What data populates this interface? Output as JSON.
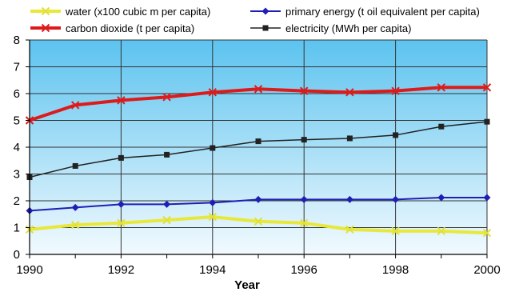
{
  "chart_data": {
    "type": "line",
    "title": "",
    "xlabel": "Year",
    "ylabel": "",
    "x": [
      1990,
      1991,
      1992,
      1993,
      1994,
      1995,
      1996,
      1997,
      1998,
      1999,
      2000
    ],
    "xlim": [
      1990,
      2000
    ],
    "ylim": [
      0,
      8
    ],
    "x_ticks": [
      1990,
      1992,
      1994,
      1996,
      1998,
      2000
    ],
    "y_ticks": [
      0,
      1,
      2,
      3,
      4,
      5,
      6,
      7,
      8
    ],
    "grid": true,
    "legend_position": "top",
    "series": [
      {
        "name": "water (x100 cubic m per capita)",
        "color": "#e8e83a",
        "marker": "x",
        "values": [
          0.93,
          1.1,
          1.17,
          1.28,
          1.4,
          1.23,
          1.17,
          0.93,
          0.87,
          0.87,
          0.8
        ]
      },
      {
        "name": "primary energy (t oil equivalent per capita)",
        "color": "#1f1fb5",
        "marker": "diamond",
        "values": [
          1.63,
          1.75,
          1.87,
          1.87,
          1.93,
          2.05,
          2.05,
          2.05,
          2.05,
          2.12,
          2.12
        ]
      },
      {
        "name": "carbon dioxide (t per capita)",
        "color": "#dd1b1b",
        "marker": "x",
        "values": [
          5.0,
          5.57,
          5.75,
          5.87,
          6.05,
          6.17,
          6.1,
          6.05,
          6.1,
          6.23,
          6.23
        ]
      },
      {
        "name": "electricity (MWh per capita)",
        "color": "#222222",
        "marker": "square",
        "values": [
          2.88,
          3.3,
          3.6,
          3.72,
          3.97,
          4.22,
          4.28,
          4.33,
          4.45,
          4.77,
          4.95
        ]
      }
    ]
  }
}
